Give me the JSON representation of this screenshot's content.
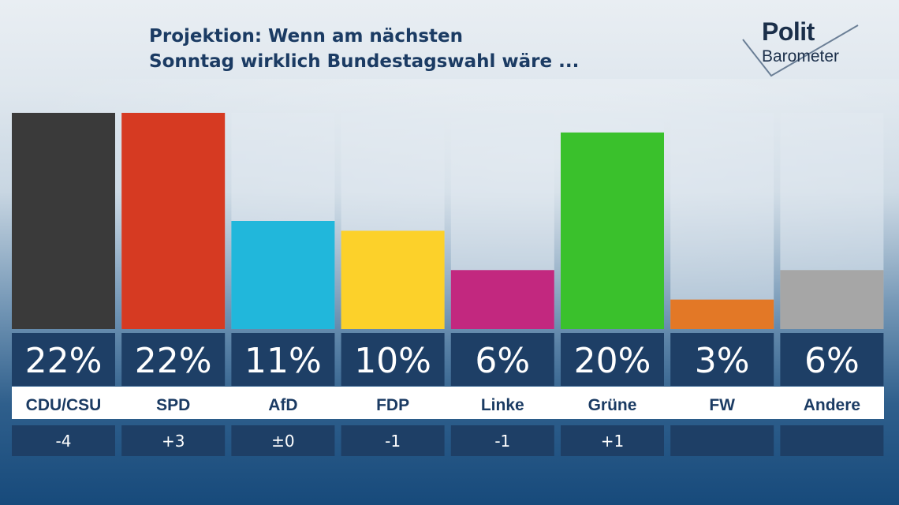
{
  "title": {
    "line1": "Projektion: Wenn am nächsten",
    "line2": "Sonntag wirklich Bundestagswahl wäre ..."
  },
  "logo": {
    "line1": "Polit",
    "line2": "Barometer"
  },
  "chart_data": {
    "type": "bar",
    "categories": [
      "CDU/CSU",
      "SPD",
      "AfD",
      "FDP",
      "Linke",
      "Grüne",
      "FW",
      "Andere"
    ],
    "values": [
      22,
      22,
      11,
      10,
      6,
      20,
      3,
      6
    ],
    "value_labels": [
      "22%",
      "22%",
      "11%",
      "10%",
      "6%",
      "20%",
      "3%",
      "6%"
    ],
    "changes": [
      "-4",
      "+3",
      "±0",
      "-1",
      "-1",
      "+1",
      "",
      ""
    ],
    "colors": [
      "#3a3a3a",
      "#d63a22",
      "#21b7db",
      "#fcd12a",
      "#c2287f",
      "#3ac12c",
      "#e37826",
      "#a6a6a6"
    ],
    "ylim": [
      0,
      22
    ],
    "grid": false,
    "title": "Projektion: Wenn am nächsten Sonntag wirklich Bundestagswahl wäre ..."
  }
}
